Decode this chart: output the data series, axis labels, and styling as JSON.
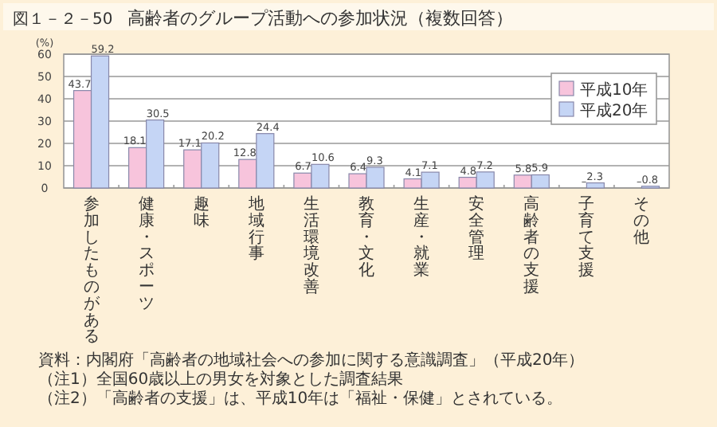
{
  "chart_data": {
    "type": "bar",
    "subtitle": "図１－２－50",
    "title": "高齢者のグループ活動への参加状況（複数回答）",
    "ylabel": "(%)",
    "categories": [
      "参加したものがある",
      "健康・スポーツ",
      "趣味",
      "地域行事",
      "生活環境改善",
      "教育・文化",
      "生産・就業",
      "安全管理",
      "高齢者の支援",
      "子育て支援",
      "その他"
    ],
    "series": [
      {
        "name": "平成10年",
        "color": "#f7c4dc",
        "values": [
          43.7,
          18.1,
          17.1,
          12.8,
          6.7,
          6.4,
          4.1,
          4.8,
          5.8,
          null,
          null
        ],
        "value_labels": [
          "43.7",
          "18.1",
          "17.1",
          "12.8",
          "6.7",
          "6.4",
          "4.1",
          "4.8",
          "5.8",
          "–",
          "–"
        ]
      },
      {
        "name": "平成20年",
        "color": "#c5d5f5",
        "values": [
          59.2,
          30.5,
          20.2,
          24.4,
          10.6,
          9.3,
          7.1,
          7.2,
          5.9,
          2.3,
          0.8
        ],
        "value_labels": [
          "59.2",
          "30.5",
          "20.2",
          "24.4",
          "10.6",
          "9.3",
          "7.1",
          "7.2",
          "5.9",
          "2.3",
          "0.8"
        ]
      }
    ],
    "ylim": [
      0,
      60
    ],
    "yticks": [
      0,
      10,
      20,
      30,
      40,
      50,
      60
    ],
    "grid": "y",
    "legend": "top right",
    "annotations": [
      "資料：内閣府「高齢者の地域社会への参加に関する意識調査」（平成20年）",
      "（注1）全国60歳以上の男女を対象とした調査結果",
      "（注2）「高齢者の支援」は、平成10年は「福祉・保健」とされている。"
    ]
  }
}
